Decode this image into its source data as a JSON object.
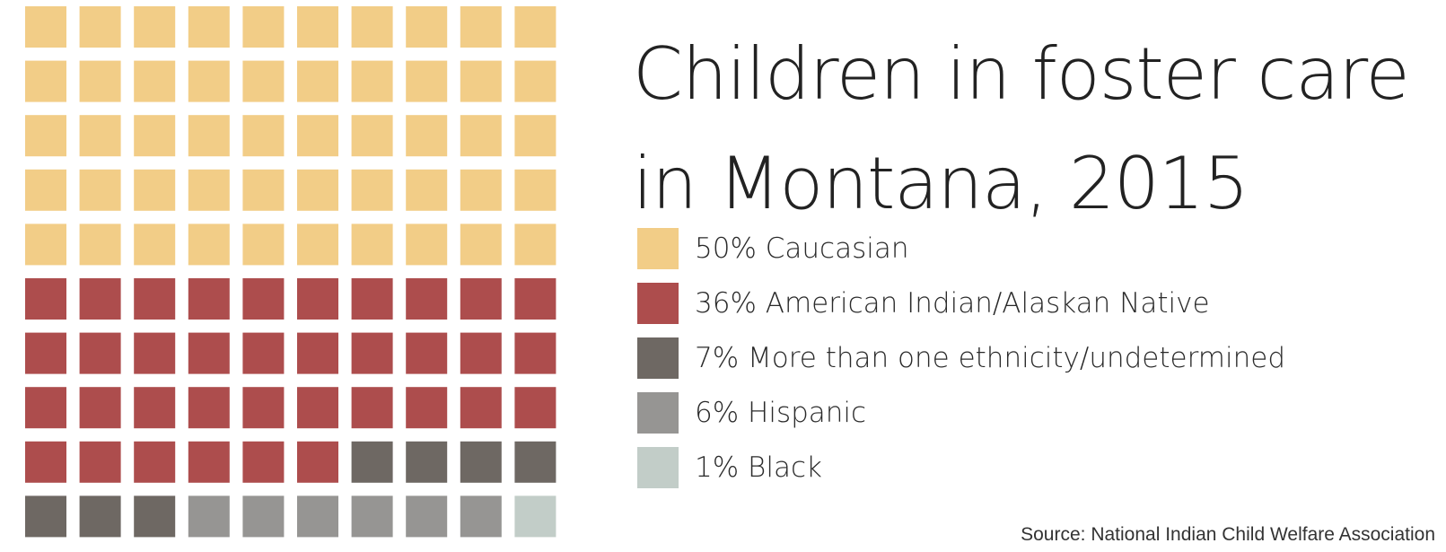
{
  "chart_data": {
    "type": "waffle",
    "title": "Children in foster care in Montana, 2015",
    "title_lines": [
      "Children in foster care",
      "in Montana, 2015"
    ],
    "grid": {
      "rows": 10,
      "columns": 10
    },
    "series": [
      {
        "label": "50% Caucasian",
        "value": 50,
        "color": "#f2cd87"
      },
      {
        "label": "36% American Indian/Alaskan Native",
        "value": 36,
        "color": "#ad4d4d"
      },
      {
        "label": "7% More than one ethnicity/undetermined",
        "value": 7,
        "color": "#6e6863"
      },
      {
        "label": "6% Hispanic",
        "value": 6,
        "color": "#969593"
      },
      {
        "label": "1% Black",
        "value": 1,
        "color": "#c2cdc8"
      }
    ],
    "source": "Source: National Indian Child Welfare Association"
  }
}
